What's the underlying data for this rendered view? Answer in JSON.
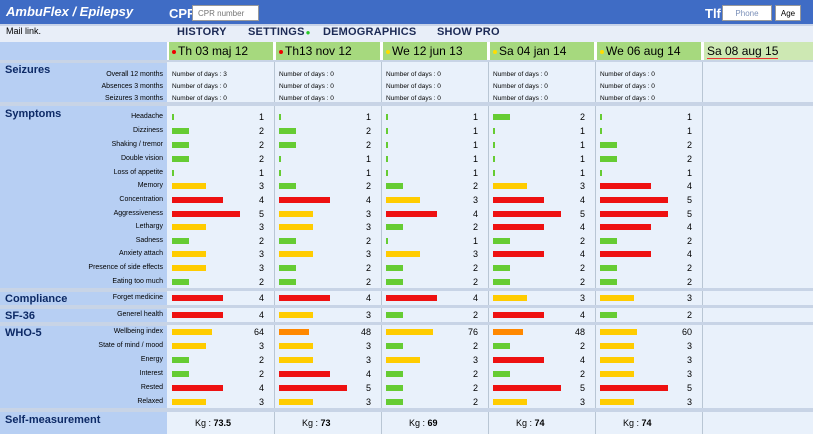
{
  "header": {
    "app_title": "AmbuFlex / Epilepsy",
    "cpr_label": "CPR",
    "cpr_placeholder": "CPR number",
    "tlf_label": "Tlf",
    "phone_placeholder": "Phone",
    "age_placeholder": "Age"
  },
  "nav": {
    "mail_link": "Mail link.",
    "history": "HISTORY",
    "settings": "SETTINGS",
    "demographics": "DEMOGRAPHICS",
    "show_pro": "SHOW PRO"
  },
  "colors": {
    "green": "#66cc33",
    "yellow": "#ffcc00",
    "red": "#ee1111",
    "orange": "#ff8800",
    "dot_red": "#ee0000",
    "dot_yellow": "#ffdd00"
  },
  "dates": [
    {
      "label": "Th 03 maj 12",
      "dot": "red"
    },
    {
      "label": "Th13 nov 12",
      "dot": "red"
    },
    {
      "label": "We 12 jun 13",
      "dot": "yellow"
    },
    {
      "label": "Sa 04 jan 14",
      "dot": "yellow"
    },
    {
      "label": "We 06 aug 14",
      "dot": "yellow"
    },
    {
      "label": "Sa 08 aug 15",
      "dot": "none"
    }
  ],
  "seizures": {
    "title": "Seizures",
    "rows": [
      {
        "label": "Overall 12 months",
        "values": [
          "Number of days : 3",
          "Number of days : 0",
          "Number of days : 0",
          "Number of days : 0",
          "Number of days : 0"
        ]
      },
      {
        "label": "Absences 3 months",
        "values": [
          "Number of days : 0",
          "Number of days : 0",
          "Number of days : 0",
          "Number of days : 0",
          "Number of days : 0"
        ]
      },
      {
        "label": "Seizures 3 months",
        "values": [
          "Number of days : 0",
          "Number of days : 0",
          "Number of days : 0",
          "Number of days : 0",
          "Number of days : 0"
        ]
      }
    ]
  },
  "symptoms": {
    "title": "Symptoms",
    "rows": [
      {
        "label": "Headache",
        "scores": [
          1,
          1,
          1,
          2,
          1
        ]
      },
      {
        "label": "Dizziness",
        "scores": [
          2,
          2,
          1,
          1,
          1
        ]
      },
      {
        "label": "Shaking / tremor",
        "scores": [
          2,
          2,
          1,
          1,
          2
        ]
      },
      {
        "label": "Double vision",
        "scores": [
          2,
          1,
          1,
          1,
          2
        ]
      },
      {
        "label": "Loss of appetite",
        "scores": [
          1,
          1,
          1,
          1,
          1
        ]
      },
      {
        "label": "Memory",
        "scores": [
          3,
          2,
          2,
          3,
          4
        ]
      },
      {
        "label": "Concentration",
        "scores": [
          4,
          4,
          3,
          4,
          5
        ]
      },
      {
        "label": "Aggressiveness",
        "scores": [
          5,
          3,
          4,
          5,
          5
        ]
      },
      {
        "label": "Lethargy",
        "scores": [
          3,
          3,
          2,
          4,
          4
        ]
      },
      {
        "label": "Sadness",
        "scores": [
          2,
          2,
          1,
          2,
          2
        ]
      },
      {
        "label": "Anxiety attach",
        "scores": [
          3,
          3,
          3,
          4,
          4
        ]
      },
      {
        "label": "Presence of side effects",
        "scores": [
          3,
          2,
          2,
          2,
          2
        ]
      },
      {
        "label": "Eating too much",
        "scores": [
          2,
          2,
          2,
          2,
          2
        ]
      }
    ]
  },
  "compliance": {
    "title": "Compliance",
    "rows": [
      {
        "label": "Forget medicine",
        "scores": [
          4,
          4,
          4,
          3,
          3
        ]
      }
    ]
  },
  "sf36": {
    "title": "SF-36",
    "rows": [
      {
        "label": "Generel health",
        "scores": [
          4,
          3,
          2,
          4,
          2
        ]
      }
    ]
  },
  "who5": {
    "title": "WHO-5",
    "rows": [
      {
        "label": "Wellbeing index",
        "scores": [
          64,
          48,
          76,
          48,
          60
        ],
        "max": 100
      },
      {
        "label": "State of mind / mood",
        "scores": [
          3,
          3,
          2,
          2,
          3
        ]
      },
      {
        "label": "Energy",
        "scores": [
          2,
          3,
          3,
          4,
          3
        ]
      },
      {
        "label": "Interest",
        "scores": [
          2,
          4,
          2,
          2,
          3
        ]
      },
      {
        "label": "Rested",
        "scores": [
          4,
          5,
          2,
          5,
          5
        ]
      },
      {
        "label": "Relaxed",
        "scores": [
          3,
          3,
          2,
          3,
          3
        ]
      }
    ]
  },
  "self_measurement": {
    "title": "Self-measurement",
    "kg_label": "Kg :",
    "values": [
      "73.5",
      "73",
      "69",
      "74",
      "74"
    ]
  }
}
